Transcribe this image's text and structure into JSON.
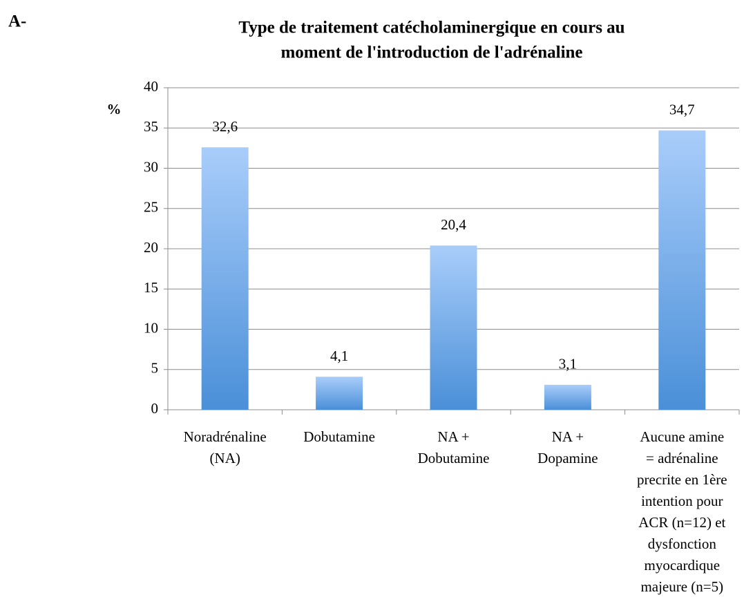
{
  "chart_data": {
    "type": "bar",
    "panel_label": "A-",
    "title": [
      "Type de traitement catécholaminergique en cours au",
      "moment de l'introduction de l'adrénaline"
    ],
    "y_label": "%",
    "categories": [
      [
        "Noradrénaline",
        "(NA)"
      ],
      [
        "Dobutamine"
      ],
      [
        "NA +",
        "Dobutamine"
      ],
      [
        "NA +",
        "Dopamine"
      ],
      [
        "Aucune amine",
        "= adrénaline",
        "precrite en 1ère",
        "intention pour",
        "ACR (n=12) et",
        "dysfonction",
        "myocardique",
        "majeure (n=5)"
      ]
    ],
    "values": [
      32.6,
      4.1,
      20.4,
      3.1,
      34.7
    ],
    "value_labels": [
      "32,6",
      "4,1",
      "20,4",
      "3,1",
      "34,7"
    ],
    "gradient": [
      "#a9cdfa",
      "#4a8fd8"
    ],
    "ylim": [
      0,
      40
    ],
    "yticks": [
      0,
      5,
      10,
      15,
      20,
      25,
      30,
      35,
      40
    ],
    "grid": true
  }
}
